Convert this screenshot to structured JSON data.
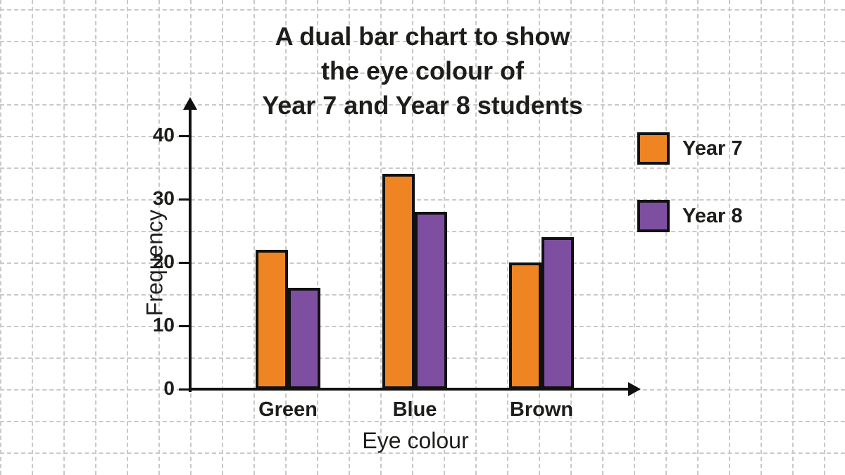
{
  "chart_data": {
    "type": "bar",
    "title_lines": [
      "A dual bar chart to show",
      "the eye colour of",
      "Year 7 and Year 8 students"
    ],
    "categories": [
      "Green",
      "Blue",
      "Brown"
    ],
    "series": [
      {
        "name": "Year 7",
        "color": "#EE8522",
        "values": [
          22,
          34,
          20
        ]
      },
      {
        "name": "Year 8",
        "color": "#7E4FA0",
        "values": [
          16,
          28,
          24
        ]
      }
    ],
    "xlabel": "Eye colour",
    "ylabel": "Frequency",
    "ylim": [
      0,
      40
    ],
    "yticks": [
      0,
      10,
      20,
      30,
      40
    ],
    "grid": "dashed",
    "legend_position": "top-right",
    "colors": {
      "axis": "#111111",
      "grid": "#c9c9c9",
      "text": "#1d1d1b"
    }
  }
}
